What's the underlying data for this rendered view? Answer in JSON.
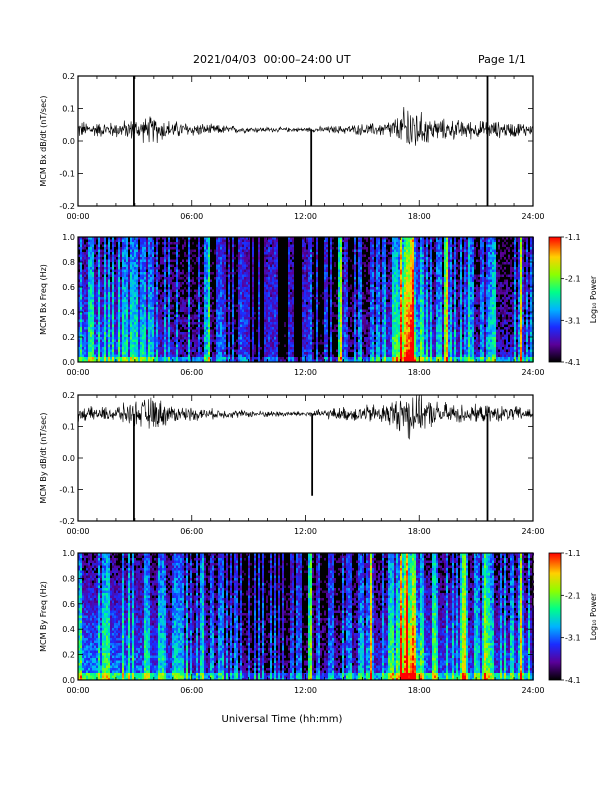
{
  "header": {
    "title": "2021/04/03  00:00–24:00 UT",
    "page": "Page 1/1"
  },
  "x_axis": {
    "title": "Universal Time (hh:mm)",
    "range_hours": [
      0,
      24
    ],
    "tick_hours": [
      0,
      6,
      12,
      18,
      24
    ],
    "tick_labels": [
      "00:00",
      "06:00",
      "12:00",
      "18:00",
      "24:00"
    ]
  },
  "colorbar": {
    "label": "Log₁₀ Power",
    "range": [
      -4.1,
      -1.1
    ],
    "ticks": [
      -1.1,
      -2.1,
      -3.1,
      -4.1
    ],
    "tick_labels": [
      "-1.1",
      "-2.1",
      "-3.1",
      "-4.1"
    ]
  },
  "chart_data": [
    {
      "type": "line",
      "ylabel": "MCM Bx dB/dt (nT/sec)",
      "ylim": [
        -0.2,
        0.2
      ],
      "yticks": [
        -0.2,
        -0.1,
        0.0,
        0.1,
        0.2
      ],
      "ytick_labels": [
        "-0.2",
        "-0.1",
        "0.0",
        "0.1",
        "0.2"
      ],
      "baseline": 0.035,
      "noise_envelope": [
        {
          "x": 0.0,
          "amp": 0.025
        },
        {
          "x": 1.5,
          "amp": 0.02
        },
        {
          "x": 3.0,
          "amp": 0.03
        },
        {
          "x": 4.0,
          "amp": 0.04
        },
        {
          "x": 5.0,
          "amp": 0.025
        },
        {
          "x": 7.0,
          "amp": 0.015
        },
        {
          "x": 9.0,
          "amp": 0.008
        },
        {
          "x": 12.0,
          "amp": 0.006
        },
        {
          "x": 14.0,
          "amp": 0.012
        },
        {
          "x": 16.0,
          "amp": 0.02
        },
        {
          "x": 17.0,
          "amp": 0.04
        },
        {
          "x": 17.5,
          "amp": 0.1
        },
        {
          "x": 18.0,
          "amp": 0.05
        },
        {
          "x": 19.0,
          "amp": 0.03
        },
        {
          "x": 21.0,
          "amp": 0.025
        },
        {
          "x": 24.0,
          "amp": 0.02
        }
      ],
      "spikes": [
        {
          "x": 2.95,
          "ymin": -0.2,
          "ymax": 0.2
        },
        {
          "x": 12.3,
          "ymin": -0.2,
          "ymax": 0.035
        },
        {
          "x": 21.6,
          "ymin": -0.2,
          "ymax": 0.2
        }
      ]
    },
    {
      "type": "heatmap",
      "ylabel": "MCM Bx Freq (Hz)",
      "ylim": [
        0.0,
        1.0
      ],
      "yticks": [
        0.0,
        0.2,
        0.4,
        0.6,
        0.8,
        1.0
      ],
      "ytick_labels": [
        "0.0",
        "0.2",
        "0.4",
        "0.6",
        "0.8",
        "1.0"
      ],
      "activity": [
        {
          "x": 0.0,
          "level": 0.45
        },
        {
          "x": 3.0,
          "level": 0.4
        },
        {
          "x": 5.0,
          "level": 0.3
        },
        {
          "x": 7.0,
          "level": 0.22
        },
        {
          "x": 9.0,
          "level": 0.12
        },
        {
          "x": 12.0,
          "level": 0.08
        },
        {
          "x": 14.0,
          "level": 0.2
        },
        {
          "x": 16.0,
          "level": 0.3
        },
        {
          "x": 17.5,
          "level": 0.7
        },
        {
          "x": 18.5,
          "level": 0.35
        },
        {
          "x": 21.0,
          "level": 0.3
        },
        {
          "x": 24.0,
          "level": 0.3
        }
      ],
      "bright_bands": [
        6.8,
        12.2,
        13.8,
        17.0,
        17.3,
        17.6,
        19.4,
        20.6,
        21.8,
        23.3
      ]
    },
    {
      "type": "line",
      "ylabel": "MCM By dB/dt (nT/sec)",
      "ylim": [
        -0.2,
        0.2
      ],
      "yticks": [
        -0.2,
        -0.1,
        0.0,
        0.1,
        0.2
      ],
      "ytick_labels": [
        "-0.2",
        "-0.1",
        "0.0",
        "0.1",
        "0.2"
      ],
      "baseline": 0.14,
      "noise_envelope": [
        {
          "x": 0.0,
          "amp": 0.02
        },
        {
          "x": 1.5,
          "amp": 0.02
        },
        {
          "x": 3.0,
          "amp": 0.035
        },
        {
          "x": 4.0,
          "amp": 0.05
        },
        {
          "x": 5.0,
          "amp": 0.025
        },
        {
          "x": 7.0,
          "amp": 0.015
        },
        {
          "x": 9.0,
          "amp": 0.01
        },
        {
          "x": 12.0,
          "amp": 0.008
        },
        {
          "x": 14.0,
          "amp": 0.02
        },
        {
          "x": 16.0,
          "amp": 0.03
        },
        {
          "x": 17.0,
          "amp": 0.05
        },
        {
          "x": 17.5,
          "amp": 0.09
        },
        {
          "x": 18.0,
          "amp": 0.05
        },
        {
          "x": 19.0,
          "amp": 0.035
        },
        {
          "x": 21.0,
          "amp": 0.025
        },
        {
          "x": 24.0,
          "amp": 0.02
        }
      ],
      "spikes": [
        {
          "x": 2.95,
          "ymin": -0.2,
          "ymax": 0.14
        },
        {
          "x": 12.35,
          "ymin": -0.12,
          "ymax": 0.14
        },
        {
          "x": 21.6,
          "ymin": -0.2,
          "ymax": 0.14
        }
      ]
    },
    {
      "type": "heatmap",
      "ylabel": "MCM By Freq (Hz)",
      "ylim": [
        0.0,
        1.0
      ],
      "yticks": [
        0.0,
        0.2,
        0.4,
        0.6,
        0.8,
        1.0
      ],
      "ytick_labels": [
        "0.0",
        "0.2",
        "0.4",
        "0.6",
        "0.8",
        "1.0"
      ],
      "activity": [
        {
          "x": 0.0,
          "level": 0.5
        },
        {
          "x": 3.0,
          "level": 0.45
        },
        {
          "x": 5.0,
          "level": 0.35
        },
        {
          "x": 7.0,
          "level": 0.3
        },
        {
          "x": 9.0,
          "level": 0.2
        },
        {
          "x": 12.0,
          "level": 0.18
        },
        {
          "x": 14.0,
          "level": 0.28
        },
        {
          "x": 16.0,
          "level": 0.35
        },
        {
          "x": 17.5,
          "level": 0.75
        },
        {
          "x": 18.5,
          "level": 0.4
        },
        {
          "x": 21.0,
          "level": 0.38
        },
        {
          "x": 24.0,
          "level": 0.38
        }
      ],
      "bright_bands": [
        6.5,
        12.2,
        15.4,
        17.0,
        17.3,
        17.6,
        18.8,
        20.3,
        21.5,
        23.3
      ]
    }
  ]
}
